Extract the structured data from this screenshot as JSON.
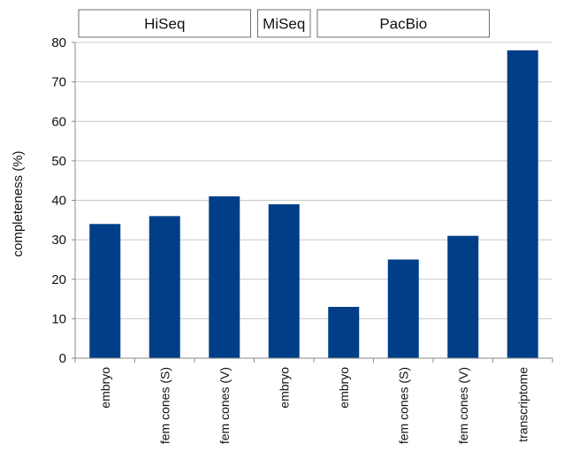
{
  "chart_data": {
    "type": "bar",
    "title": "",
    "xlabel": "",
    "ylabel": "completeness (%)",
    "ylim": [
      0,
      80
    ],
    "yticks": [
      0,
      10,
      20,
      30,
      40,
      50,
      60,
      70,
      80
    ],
    "grid": true,
    "bar_color": "#003f87",
    "categories": [
      "embryo",
      "fem cones (S)",
      "fem cones (V)",
      "embryo",
      "embryo",
      "fem cones (S)",
      "fem cones (V)",
      "transcriptome"
    ],
    "values": [
      34,
      36,
      41,
      39,
      13,
      25,
      31,
      78
    ],
    "groups": [
      {
        "label": "HiSeq",
        "start": 0,
        "end": 2
      },
      {
        "label": "MiSeq",
        "start": 3,
        "end": 3
      },
      {
        "label": "PacBio",
        "start": 4,
        "end": 6
      }
    ]
  }
}
